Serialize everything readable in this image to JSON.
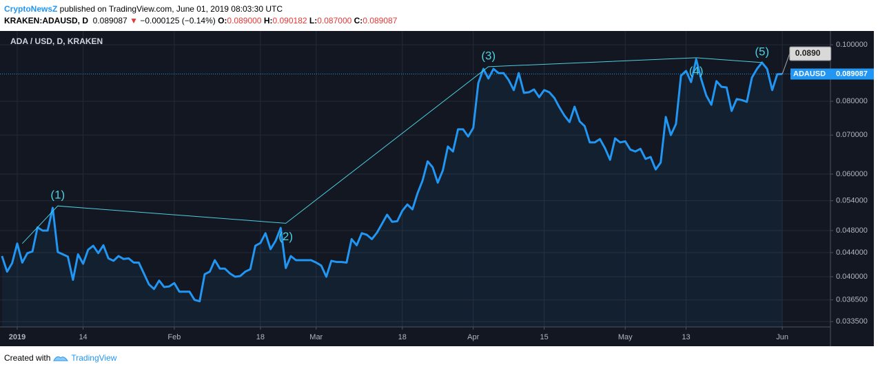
{
  "header": {
    "author": "CryptoNewsZ",
    "published": " published on TradingView.com, June 01, 2019 08:03:30 UTC",
    "symbol": "KRAKEN:ADAUSD, D",
    "price": "0.089087",
    "arrow": "▼",
    "change": "−0.000125 (−0.14%)",
    "ohlc": [
      {
        "label": "O:",
        "value": "0.089000"
      },
      {
        "label": "H:",
        "value": "0.090182"
      },
      {
        "label": "L:",
        "value": "0.087000"
      },
      {
        "label": "C:",
        "value": "0.089087"
      }
    ]
  },
  "chart_data": {
    "type": "line",
    "title": "ADA / USD, D, KRAKEN",
    "log_scale": true,
    "grid": true,
    "series": [
      {
        "name": "ADAUSD",
        "color": "#2196f3",
        "x": [
          -3,
          -2,
          -1,
          0,
          1,
          2,
          3,
          4,
          5,
          6,
          7,
          8,
          9,
          10,
          11,
          12,
          13,
          14,
          15,
          16,
          17,
          18,
          19,
          20,
          21,
          22,
          23,
          24,
          25,
          26,
          27,
          28,
          29,
          30,
          31,
          32,
          33,
          34,
          35,
          36,
          37,
          38,
          39,
          40,
          41,
          42,
          43,
          44,
          45,
          46,
          47,
          48,
          49,
          50,
          51,
          52,
          53,
          54,
          55,
          56,
          57,
          58,
          59,
          60,
          61,
          62,
          63,
          64,
          65,
          66,
          67,
          68,
          69,
          70,
          71,
          72,
          73,
          74,
          75,
          76,
          77,
          78,
          79,
          80,
          81,
          82,
          83,
          84,
          85,
          86,
          87,
          88,
          89,
          90,
          91,
          92,
          93,
          94,
          95,
          96,
          97,
          98,
          99,
          100,
          101,
          102,
          103,
          104,
          105,
          106,
          107,
          108,
          109,
          110,
          111,
          112,
          113,
          114,
          115,
          116,
          117,
          118,
          119,
          120,
          121,
          122,
          123,
          124,
          125,
          126,
          127,
          128,
          129,
          130,
          131,
          132,
          133,
          134,
          135,
          136,
          137,
          138,
          139,
          140,
          141,
          142,
          143,
          144,
          145,
          146,
          147,
          148,
          149,
          150,
          151
        ],
        "values": [
          0.0434,
          0.0408,
          0.0422,
          0.0456,
          0.0423,
          0.0439,
          0.0442,
          0.0486,
          0.048,
          0.048,
          0.0525,
          0.0441,
          0.0437,
          0.0433,
          0.0395,
          0.0437,
          0.0421,
          0.0445,
          0.0452,
          0.0439,
          0.0453,
          0.043,
          0.0426,
          0.0434,
          0.0429,
          0.043,
          0.0423,
          0.0423,
          0.0405,
          0.0388,
          0.0381,
          0.0394,
          0.0384,
          0.0385,
          0.039,
          0.0377,
          0.0377,
          0.0377,
          0.0365,
          0.0363,
          0.0404,
          0.0408,
          0.0427,
          0.0413,
          0.0413,
          0.0405,
          0.04,
          0.0401,
          0.0408,
          0.0412,
          0.0452,
          0.0457,
          0.0475,
          0.0446,
          0.0461,
          0.0485,
          0.0414,
          0.0434,
          0.0427,
          0.0427,
          0.0427,
          0.0427,
          0.0423,
          0.0418,
          0.04,
          0.0426,
          0.0424,
          0.0424,
          0.0423,
          0.0464,
          0.0453,
          0.0475,
          0.0472,
          0.0464,
          0.0476,
          0.0493,
          0.0511,
          0.0497,
          0.0498,
          0.0519,
          0.0532,
          0.0522,
          0.0556,
          0.0585,
          0.0631,
          0.0616,
          0.058,
          0.0609,
          0.0669,
          0.0656,
          0.0716,
          0.0716,
          0.0696,
          0.072,
          0.0859,
          0.0909,
          0.0875,
          0.0909,
          0.0894,
          0.0894,
          0.087,
          0.0836,
          0.0894,
          0.0827,
          0.0829,
          0.0838,
          0.0813,
          0.0836,
          0.0829,
          0.0811,
          0.0781,
          0.0756,
          0.0737,
          0.0783,
          0.0739,
          0.0725,
          0.068,
          0.068,
          0.0689,
          0.0665,
          0.0635,
          0.0691,
          0.068,
          0.0683,
          0.0661,
          0.0656,
          0.0663,
          0.0637,
          0.0642,
          0.0611,
          0.0628,
          0.0752,
          0.07,
          0.0731,
          0.0885,
          0.0902,
          0.0863,
          0.0944,
          0.0873,
          0.0818,
          0.0789,
          0.0866,
          0.0847,
          0.0845,
          0.077,
          0.0807,
          0.0804,
          0.0798,
          0.0878,
          0.0909,
          0.0932,
          0.0909,
          0.0836,
          0.089,
          0.089087
        ]
      }
    ],
    "last_price": 0.089087,
    "tooltip": "0.0890",
    "wave": {
      "color": "#4dd0e1",
      "x": [
        1,
        8,
        53,
        93,
        134,
        147
      ],
      "y": [
        0.0456,
        0.0529,
        0.0494,
        0.0917,
        0.095,
        0.0932
      ],
      "labels": [
        "(1)",
        "(2)",
        "(3)",
        "(4)",
        "(5)"
      ]
    },
    "xlim": [
      -3.4,
      160.5
    ],
    "xticks": [
      {
        "value": 0,
        "label": "2019"
      },
      {
        "value": 13,
        "label": "14"
      },
      {
        "value": 31,
        "label": "Feb"
      },
      {
        "value": 48,
        "label": "18"
      },
      {
        "value": 59,
        "label": "Mar"
      },
      {
        "value": 76,
        "label": "18"
      },
      {
        "value": 90,
        "label": "Apr"
      },
      {
        "value": 104,
        "label": "15"
      },
      {
        "value": 120,
        "label": "May"
      },
      {
        "value": 132,
        "label": "13"
      },
      {
        "value": 151,
        "label": "Jun"
      }
    ],
    "ylim": [
      0.0328,
      0.1056
    ],
    "yticks": [
      {
        "value": 0.0335,
        "label": "0.033500"
      },
      {
        "value": 0.0365,
        "label": "0.036500"
      },
      {
        "value": 0.04,
        "label": "0.040000"
      },
      {
        "value": 0.044,
        "label": "0.044000"
      },
      {
        "value": 0.048,
        "label": "0.048000"
      },
      {
        "value": 0.054,
        "label": "0.054000"
      },
      {
        "value": 0.06,
        "label": "0.060000"
      },
      {
        "value": 0.07,
        "label": "0.070000"
      },
      {
        "value": 0.08,
        "label": "0.080000"
      },
      {
        "value": 0.1,
        "label": "0.100000"
      }
    ]
  },
  "footer": {
    "text": "Created with",
    "brand": "TradingView"
  }
}
